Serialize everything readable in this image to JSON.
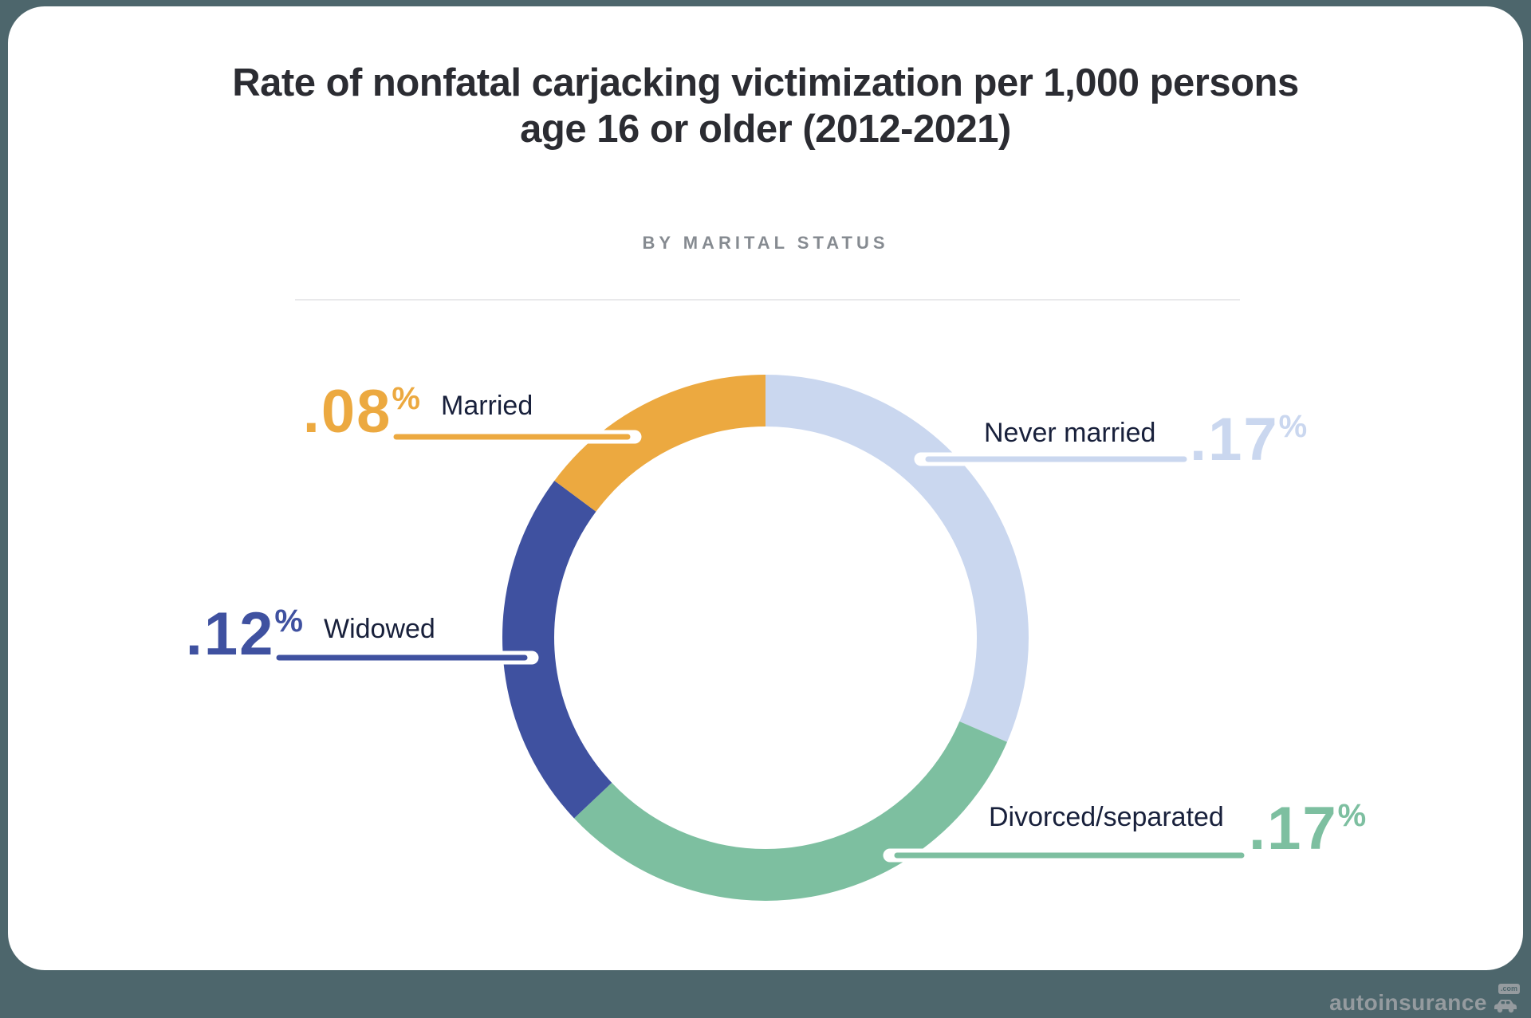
{
  "colors": {
    "background": "#4D666C",
    "card": "#FFFFFF",
    "title": "#2B2C32",
    "subtitle": "#868B91",
    "label": "#18203B",
    "divider": "#E9E9EB",
    "watermark": "#9CA0A4"
  },
  "chart_data": {
    "type": "pie",
    "variant": "donut",
    "title": "Rate of nonfatal carjacking victimization per 1,000 persons age 16 or older (2012-2021)",
    "subtitle": "BY MARITAL STATUS",
    "unit": "%",
    "direction": "clockwise",
    "start_angle_deg": 0,
    "legend_position": "callouts",
    "segments": [
      {
        "label": "Never married",
        "value": 0.17,
        "display": ".17",
        "color": "#CAD7EF"
      },
      {
        "label": "Divorced/separated",
        "value": 0.17,
        "display": ".17",
        "color": "#7DBFA0"
      },
      {
        "label": "Widowed",
        "value": 0.12,
        "display": ".12",
        "color": "#3F51A0"
      },
      {
        "label": "Married",
        "value": 0.08,
        "display": ".08",
        "color": "#ECA940"
      }
    ]
  },
  "watermark": {
    "brand": "autoinsurance",
    "badge": ".com"
  }
}
